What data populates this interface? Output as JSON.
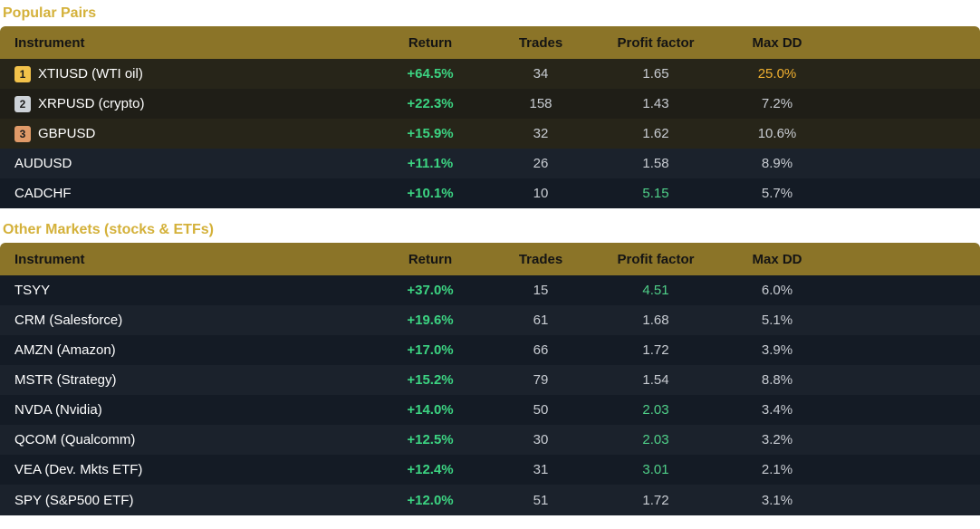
{
  "popular": {
    "title": "Popular Pairs",
    "headers": {
      "instrument": "Instrument",
      "return": "Return",
      "trades": "Trades",
      "profit_factor": "Profit factor",
      "max_dd": "Max DD"
    },
    "rows": [
      {
        "rank": "1",
        "instrument": "XTIUSD (WTI oil)",
        "return": "+64.5%",
        "trades": "34",
        "profit_factor": "1.65",
        "max_dd": "25.0%",
        "pf_highlight": false,
        "dd_highlight": true
      },
      {
        "rank": "2",
        "instrument": "XRPUSD (crypto)",
        "return": "+22.3%",
        "trades": "158",
        "profit_factor": "1.43",
        "max_dd": "7.2%",
        "pf_highlight": false,
        "dd_highlight": false
      },
      {
        "rank": "3",
        "instrument": "GBPUSD",
        "return": "+15.9%",
        "trades": "32",
        "profit_factor": "1.62",
        "max_dd": "10.6%",
        "pf_highlight": false,
        "dd_highlight": false
      },
      {
        "rank": "",
        "instrument": "AUDUSD",
        "return": "+11.1%",
        "trades": "26",
        "profit_factor": "1.58",
        "max_dd": "8.9%",
        "pf_highlight": false,
        "dd_highlight": false
      },
      {
        "rank": "",
        "instrument": "CADCHF",
        "return": "+10.1%",
        "trades": "10",
        "profit_factor": "5.15",
        "max_dd": "5.7%",
        "pf_highlight": true,
        "dd_highlight": false
      }
    ]
  },
  "other": {
    "title": "Other Markets (stocks & ETFs)",
    "headers": {
      "instrument": "Instrument",
      "return": "Return",
      "trades": "Trades",
      "profit_factor": "Profit factor",
      "max_dd": "Max DD"
    },
    "rows": [
      {
        "instrument": "TSYY",
        "return": "+37.0%",
        "trades": "15",
        "profit_factor": "4.51",
        "max_dd": "6.0%",
        "pf_highlight": true
      },
      {
        "instrument": "CRM (Salesforce)",
        "return": "+19.6%",
        "trades": "61",
        "profit_factor": "1.68",
        "max_dd": "5.1%",
        "pf_highlight": false
      },
      {
        "instrument": "AMZN (Amazon)",
        "return": "+17.0%",
        "trades": "66",
        "profit_factor": "1.72",
        "max_dd": "3.9%",
        "pf_highlight": false
      },
      {
        "instrument": "MSTR (Strategy)",
        "return": "+15.2%",
        "trades": "79",
        "profit_factor": "1.54",
        "max_dd": "8.8%",
        "pf_highlight": false
      },
      {
        "instrument": "NVDA (Nvidia)",
        "return": "+14.0%",
        "trades": "50",
        "profit_factor": "2.03",
        "max_dd": "3.4%",
        "pf_highlight": true
      },
      {
        "instrument": "QCOM (Qualcomm)",
        "return": "+12.5%",
        "trades": "30",
        "profit_factor": "2.03",
        "max_dd": "3.2%",
        "pf_highlight": true
      },
      {
        "instrument": "VEA (Dev. Mkts ETF)",
        "return": "+12.4%",
        "trades": "31",
        "profit_factor": "3.01",
        "max_dd": "2.1%",
        "pf_highlight": true
      },
      {
        "instrument": "SPY (S&P500 ETF)",
        "return": "+12.0%",
        "trades": "51",
        "profit_factor": "1.72",
        "max_dd": "3.1%",
        "pf_highlight": false
      }
    ]
  },
  "colors": {
    "section_title": "#d4b13a",
    "header_bg": "#8b7428",
    "return_green": "#3cd482",
    "pf_green": "#4fcf88",
    "dd_orange": "#f0b030",
    "rank_1": "#f2c24a",
    "rank_2": "#cdd2d8",
    "rank_3": "#e09a68"
  }
}
